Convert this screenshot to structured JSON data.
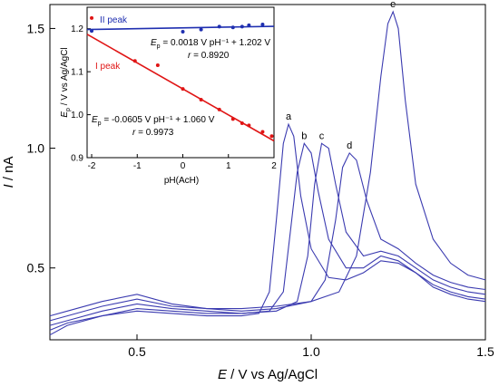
{
  "chart_data": [
    {
      "type": "line",
      "xlabel_italic": "E",
      "xlabel_rest": " / V vs Ag/AgCl",
      "ylabel_italic": "I",
      "ylabel_rest": " / nA",
      "xlim": [
        0.25,
        1.5
      ],
      "ylim": [
        0.2,
        1.6
      ],
      "x_ticks": [
        0.5,
        1.0,
        1.5
      ],
      "x_tick_labels": [
        "0.5",
        "1.0",
        "1.5"
      ],
      "y_ticks": [
        0.5,
        1.0,
        1.5
      ],
      "y_tick_labels": [
        "0.5",
        "1.0",
        "1.5"
      ],
      "line_color": "#3b3bb0",
      "series": [
        {
          "name": "a",
          "points": [
            [
              0.25,
              0.22
            ],
            [
              0.3,
              0.26
            ],
            [
              0.4,
              0.3
            ],
            [
              0.5,
              0.32
            ],
            [
              0.6,
              0.31
            ],
            [
              0.7,
              0.3
            ],
            [
              0.8,
              0.3
            ],
            [
              0.85,
              0.31
            ],
            [
              0.88,
              0.4
            ],
            [
              0.9,
              0.7
            ],
            [
              0.92,
              1.02
            ],
            [
              0.935,
              1.1
            ],
            [
              0.95,
              1.05
            ],
            [
              0.97,
              0.8
            ],
            [
              1.0,
              0.58
            ],
            [
              1.05,
              0.46
            ],
            [
              1.1,
              0.45
            ],
            [
              1.15,
              0.48
            ],
            [
              1.2,
              0.53
            ],
            [
              1.25,
              0.52
            ],
            [
              1.3,
              0.48
            ],
            [
              1.35,
              0.42
            ],
            [
              1.4,
              0.39
            ],
            [
              1.45,
              0.37
            ],
            [
              1.5,
              0.36
            ]
          ]
        },
        {
          "name": "b",
          "points": [
            [
              0.25,
              0.24
            ],
            [
              0.3,
              0.27
            ],
            [
              0.4,
              0.3
            ],
            [
              0.5,
              0.33
            ],
            [
              0.6,
              0.32
            ],
            [
              0.7,
              0.31
            ],
            [
              0.8,
              0.31
            ],
            [
              0.88,
              0.32
            ],
            [
              0.92,
              0.4
            ],
            [
              0.94,
              0.65
            ],
            [
              0.96,
              0.9
            ],
            [
              0.98,
              1.02
            ],
            [
              1.0,
              0.98
            ],
            [
              1.02,
              0.82
            ],
            [
              1.05,
              0.62
            ],
            [
              1.1,
              0.5
            ],
            [
              1.15,
              0.5
            ],
            [
              1.2,
              0.55
            ],
            [
              1.25,
              0.53
            ],
            [
              1.3,
              0.48
            ],
            [
              1.35,
              0.43
            ],
            [
              1.4,
              0.4
            ],
            [
              1.45,
              0.38
            ],
            [
              1.5,
              0.37
            ]
          ]
        },
        {
          "name": "c",
          "points": [
            [
              0.25,
              0.26
            ],
            [
              0.3,
              0.28
            ],
            [
              0.4,
              0.32
            ],
            [
              0.5,
              0.35
            ],
            [
              0.6,
              0.33
            ],
            [
              0.7,
              0.32
            ],
            [
              0.8,
              0.31
            ],
            [
              0.9,
              0.32
            ],
            [
              0.96,
              0.36
            ],
            [
              0.99,
              0.55
            ],
            [
              1.01,
              0.85
            ],
            [
              1.03,
              1.02
            ],
            [
              1.05,
              1.0
            ],
            [
              1.07,
              0.85
            ],
            [
              1.1,
              0.65
            ],
            [
              1.15,
              0.55
            ],
            [
              1.2,
              0.57
            ],
            [
              1.25,
              0.55
            ],
            [
              1.3,
              0.5
            ],
            [
              1.35,
              0.45
            ],
            [
              1.4,
              0.42
            ],
            [
              1.45,
              0.4
            ],
            [
              1.5,
              0.39
            ]
          ]
        },
        {
          "name": "d",
          "points": [
            [
              0.25,
              0.28
            ],
            [
              0.3,
              0.3
            ],
            [
              0.4,
              0.34
            ],
            [
              0.5,
              0.37
            ],
            [
              0.6,
              0.34
            ],
            [
              0.7,
              0.33
            ],
            [
              0.8,
              0.32
            ],
            [
              0.9,
              0.33
            ],
            [
              1.0,
              0.36
            ],
            [
              1.04,
              0.45
            ],
            [
              1.07,
              0.7
            ],
            [
              1.09,
              0.92
            ],
            [
              1.11,
              0.98
            ],
            [
              1.13,
              0.95
            ],
            [
              1.16,
              0.78
            ],
            [
              1.2,
              0.62
            ],
            [
              1.25,
              0.58
            ],
            [
              1.3,
              0.52
            ],
            [
              1.35,
              0.47
            ],
            [
              1.4,
              0.44
            ],
            [
              1.45,
              0.42
            ],
            [
              1.5,
              0.41
            ]
          ]
        },
        {
          "name": "e",
          "points": [
            [
              0.25,
              0.3
            ],
            [
              0.3,
              0.32
            ],
            [
              0.4,
              0.36
            ],
            [
              0.5,
              0.39
            ],
            [
              0.6,
              0.35
            ],
            [
              0.7,
              0.33
            ],
            [
              0.8,
              0.33
            ],
            [
              0.9,
              0.34
            ],
            [
              1.0,
              0.36
            ],
            [
              1.08,
              0.4
            ],
            [
              1.13,
              0.55
            ],
            [
              1.17,
              0.9
            ],
            [
              1.2,
              1.3
            ],
            [
              1.22,
              1.52
            ],
            [
              1.235,
              1.57
            ],
            [
              1.25,
              1.5
            ],
            [
              1.27,
              1.2
            ],
            [
              1.3,
              0.85
            ],
            [
              1.35,
              0.62
            ],
            [
              1.4,
              0.52
            ],
            [
              1.45,
              0.47
            ],
            [
              1.5,
              0.45
            ]
          ]
        }
      ]
    },
    {
      "type": "scatter",
      "xlabel": "pH(AcH)",
      "ylabel_italic": "E",
      "ylabel_sub": "p",
      "ylabel_rest": " / V vs Ag/AgCl",
      "xlim": [
        -2.1,
        2.0
      ],
      "ylim": [
        0.9,
        1.25
      ],
      "x_ticks": [
        -2,
        -1,
        0,
        1,
        2
      ],
      "x_tick_labels": [
        "-2",
        "-1",
        "0",
        "1",
        "2"
      ],
      "y_ticks": [
        0.9,
        1.0,
        1.1,
        1.2
      ],
      "y_tick_labels": [
        "0.9",
        "1.0",
        "1.1",
        "1.2"
      ],
      "series": [
        {
          "name": "II peak",
          "color": "#1f2fb0",
          "points": [
            [
              -2.0,
              1.195
            ],
            [
              0.0,
              1.193
            ],
            [
              0.4,
              1.198
            ],
            [
              0.8,
              1.205
            ],
            [
              1.1,
              1.203
            ],
            [
              1.3,
              1.205
            ],
            [
              1.45,
              1.208
            ],
            [
              1.75,
              1.21
            ]
          ],
          "fit": {
            "slope": 0.0018,
            "intercept": 1.202
          },
          "equation_italic": "E",
          "equation_sub": "p",
          "equation_rest": " = 0.0018 V pH⁻¹ + 1.202 V",
          "r_italic": "r",
          "r_rest": " = 0.8920"
        },
        {
          "name": "I peak",
          "color": "#e01515",
          "points": [
            [
              -2.0,
              1.225
            ],
            [
              -1.05,
              1.125
            ],
            [
              -0.55,
              1.115
            ],
            [
              0.0,
              1.06
            ],
            [
              0.4,
              1.035
            ],
            [
              0.8,
              1.012
            ],
            [
              1.1,
              0.99
            ],
            [
              1.3,
              0.98
            ],
            [
              1.45,
              0.975
            ],
            [
              1.75,
              0.96
            ],
            [
              1.95,
              0.95
            ]
          ],
          "fit": {
            "slope": -0.0605,
            "intercept": 1.06
          },
          "equation_italic": "E",
          "equation_sub": "p",
          "equation_rest": " = -0.0605 V pH⁻¹ + 1.060 V",
          "r_italic": "r",
          "r_rest": " = 0.9973"
        }
      ]
    }
  ]
}
